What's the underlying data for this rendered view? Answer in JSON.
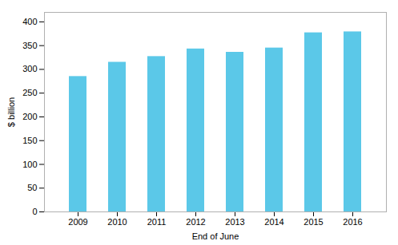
{
  "chart_data": {
    "type": "bar",
    "categories": [
      "2009",
      "2010",
      "2011",
      "2012",
      "2013",
      "2014",
      "2015",
      "2016"
    ],
    "values": [
      285,
      315,
      327,
      343,
      336,
      345,
      377,
      379
    ],
    "color": "#5BC8E8",
    "xlabel": "End of June",
    "ylabel": "$ billion",
    "ylim": [
      0,
      420
    ],
    "yticks": [
      0,
      50,
      100,
      150,
      200,
      250,
      300,
      350,
      400
    ],
    "grid": false
  }
}
